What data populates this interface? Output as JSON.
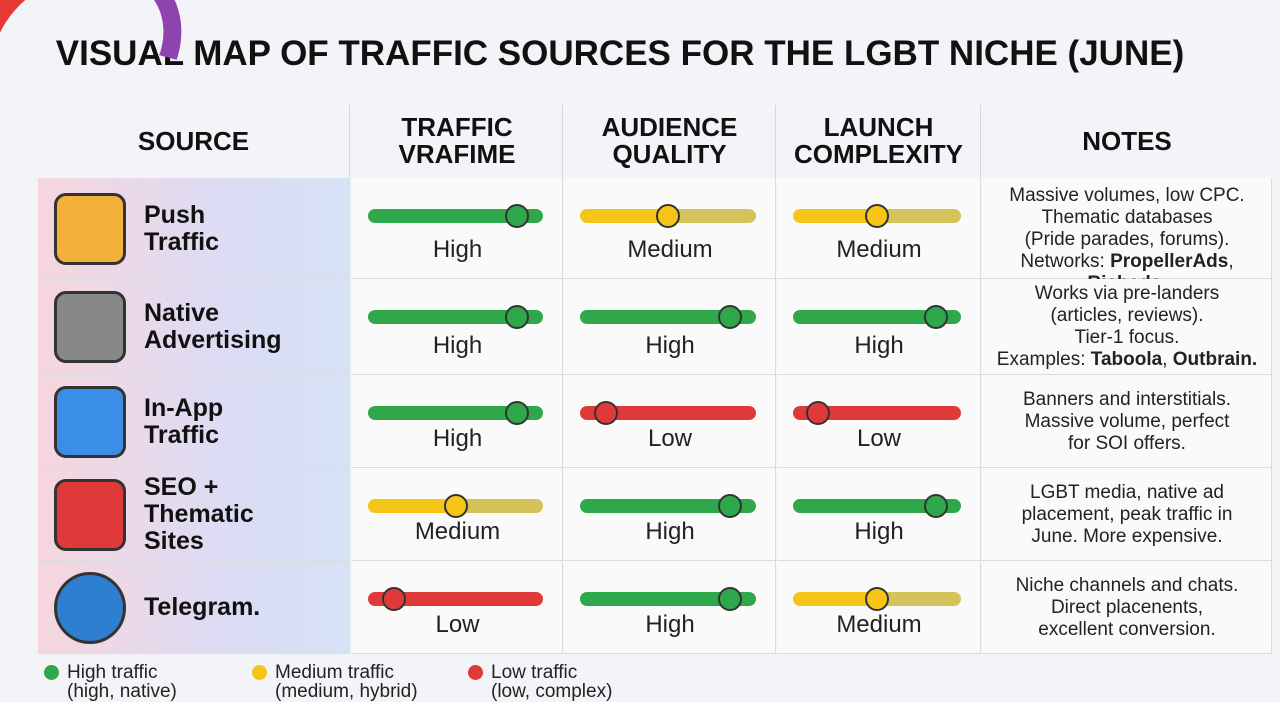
{
  "title": "VISUAL MAP OF TRAFFIC SOURCES FOR THE LGBT NICHE (JUNE)",
  "headers": [
    "SOURCE",
    "TRAFFIC VRAFIME",
    "AUDIENCE QUALITY",
    "LAUNCH COMPLEXITY",
    "NOTES"
  ],
  "rows": [
    {
      "source": [
        "Push",
        "Traffic"
      ],
      "ratings": [
        "High",
        "Medium",
        "Medium"
      ],
      "notes": [
        [
          {
            "text": "Massive volumes, low CPC."
          }
        ],
        [
          {
            "text": "Thematic databases"
          }
        ],
        [
          {
            "text": "(Pride parades, forums)."
          }
        ],
        [
          {
            "text": "Networks: "
          },
          {
            "text": "PropellerAds",
            "bold": true
          },
          {
            "text": ", "
          },
          {
            "text": "Richads.",
            "bold": true
          }
        ]
      ]
    },
    {
      "source": [
        "Native",
        "Advertising"
      ],
      "ratings": [
        "High",
        "High",
        "High"
      ],
      "notes": [
        [
          {
            "text": "Works via pre-landers"
          }
        ],
        [
          {
            "text": "(articles, reviews)."
          }
        ],
        [
          {
            "text": "Tier-1 focus."
          }
        ],
        [
          {
            "text": "Examples: "
          },
          {
            "text": "Taboola",
            "bold": true
          },
          {
            "text": ", "
          },
          {
            "text": "Outbrain.",
            "bold": true
          }
        ]
      ]
    },
    {
      "source": [
        "In-App",
        "Traffic"
      ],
      "ratings": [
        "High",
        "Low",
        "Low"
      ],
      "notes": [
        [
          {
            "text": "Banners and interstitials."
          }
        ],
        [
          {
            "text": "Massive volume, perfect"
          }
        ],
        [
          {
            "text": "for SOI offers."
          }
        ]
      ]
    },
    {
      "source": [
        "SEO +",
        "Thematic",
        "Sites"
      ],
      "ratings": [
        "Medium",
        "High",
        "High"
      ],
      "notes": [
        [
          {
            "text": "LGBT media, native ad"
          }
        ],
        [
          {
            "text": "placement, peak traffic in"
          }
        ],
        [
          {
            "text": "June. More expensive."
          }
        ]
      ]
    },
    {
      "source": [
        "Telegram."
      ],
      "ratings": [
        "Low",
        "High",
        "Medium"
      ],
      "notes": [
        [
          {
            "text": "Niche channels and chats."
          }
        ],
        [
          {
            "text": "Direct placenents,"
          }
        ],
        [
          {
            "text": "excellent conversion."
          }
        ]
      ]
    }
  ],
  "legend": [
    {
      "label": "High traffic",
      "sub": "(high, native)",
      "color": "#2ea84a"
    },
    {
      "label": "Medium traffic",
      "sub": "(medium, hybrid)",
      "color": "#f5c518"
    },
    {
      "label": "Low traffic",
      "sub": "(low, complex)",
      "color": "#e0393a"
    }
  ]
}
